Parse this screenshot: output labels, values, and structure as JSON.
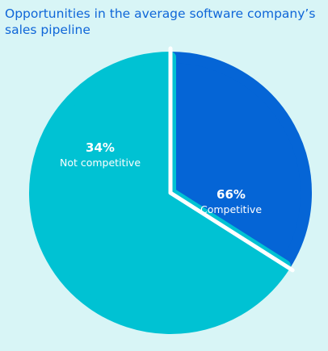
{
  "title": "Opportunities in the average software company’s sales pipeline",
  "chart_data": {
    "type": "pie",
    "title": "Opportunities in the average software company’s sales pipeline",
    "slices": [
      {
        "label": "Not competitive",
        "value": 34,
        "value_label": "34%",
        "color": "#0565d6"
      },
      {
        "label": "Competitive",
        "value": 66,
        "value_label": "66%",
        "color": "#00c2d3"
      }
    ],
    "start_angle_deg": 0,
    "direction": "clockwise-from-top",
    "background": "#d8f5f6",
    "title_color": "#0f66d8",
    "label_color": "#ffffff"
  }
}
